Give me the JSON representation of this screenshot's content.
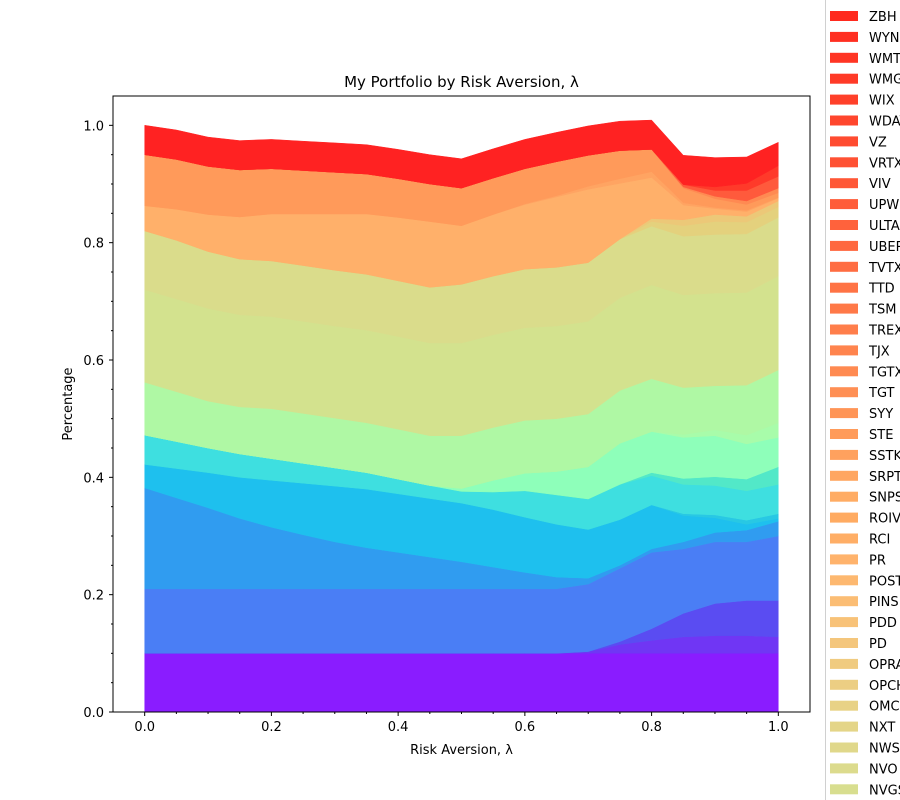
{
  "chart_data": {
    "type": "area",
    "stacked": true,
    "title": "My Portfolio by Risk Aversion, λ",
    "xlabel": "Risk Aversion, λ",
    "ylabel": "Percentage",
    "xlim": [
      -0.05,
      1.05
    ],
    "ylim": [
      0.0,
      1.05
    ],
    "xticks": [
      "0.0",
      "0.2",
      "0.4",
      "0.6",
      "0.8",
      "1.0"
    ],
    "yticks": [
      "0.0",
      "0.2",
      "0.4",
      "0.6",
      "0.8",
      "1.0"
    ],
    "grid": false,
    "legend_position": "right (outside, clipped)",
    "legend": [
      "ZBH",
      "WYNN",
      "WMT",
      "WMG",
      "WIX",
      "WDAY",
      "VZ",
      "VRTX",
      "VIV",
      "UPWK",
      "ULTA",
      "UBER",
      "TVTX",
      "TTD",
      "TSM",
      "TREX",
      "TJX",
      "TGTX",
      "TGT",
      "SYY",
      "STE",
      "SSTK",
      "SRPT",
      "SNPS",
      "ROIV",
      "RCI",
      "PR",
      "POST",
      "PINS",
      "PDD",
      "PD",
      "OPRA",
      "OPCH",
      "OMC",
      "NXT",
      "NWS",
      "NVO",
      "NVGS"
    ],
    "legend_colors": [
      "#ff2a1e",
      "#ff2f21",
      "#ff3524",
      "#ff3a27",
      "#ff402a",
      "#ff462d",
      "#ff4b30",
      "#ff5133",
      "#ff5736",
      "#ff5c39",
      "#ff623c",
      "#ff683f",
      "#ff6d42",
      "#ff7345",
      "#ff7948",
      "#ff7e4b",
      "#ff844e",
      "#ff8a51",
      "#ff8f54",
      "#ff9557",
      "#ff9b5a",
      "#ffa15e",
      "#ffa661",
      "#ffac64",
      "#ffab62",
      "#ffae66",
      "#ffb36c",
      "#fdb870",
      "#fbbd74",
      "#f8c278",
      "#f4c67c",
      "#f0cb80",
      "#ecce83",
      "#e8d286",
      "#e4d588",
      "#e0d88b",
      "#dcdb8d",
      "#d8de8f"
    ],
    "x": [
      0.0,
      0.05,
      0.1,
      0.15,
      0.2,
      0.25,
      0.3,
      0.35,
      0.4,
      0.45,
      0.5,
      0.55,
      0.6,
      0.65,
      0.7,
      0.75,
      0.8,
      0.85,
      0.9,
      0.95,
      1.0
    ],
    "series": [
      {
        "color": "#8a1cff",
        "values": [
          0.1,
          0.1,
          0.1,
          0.1,
          0.1,
          0.1,
          0.1,
          0.1,
          0.1,
          0.1,
          0.1,
          0.1,
          0.1,
          0.1,
          0.1,
          0.1,
          0.1,
          0.1,
          0.1,
          0.1,
          0.1
        ]
      },
      {
        "color": "#7036f4",
        "values": [
          0,
          0,
          0,
          0,
          0,
          0,
          0,
          0,
          0,
          0,
          0,
          0,
          0,
          0,
          0.003,
          0.015,
          0.022,
          0.028,
          0.03,
          0.03,
          0.028
        ]
      },
      {
        "color": "#5a4cf2",
        "values": [
          0,
          0,
          0,
          0,
          0,
          0,
          0,
          0,
          0,
          0,
          0,
          0,
          0,
          0,
          0,
          0.005,
          0.02,
          0.04,
          0.055,
          0.06,
          0.062
        ]
      },
      {
        "color": "#4a7ef5",
        "values": [
          0.11,
          0.11,
          0.11,
          0.11,
          0.11,
          0.11,
          0.11,
          0.11,
          0.11,
          0.11,
          0.11,
          0.11,
          0.11,
          0.11,
          0.115,
          0.125,
          0.13,
          0.11,
          0.105,
          0.1,
          0.11
        ]
      },
      {
        "color": "#309cf0",
        "values": [
          0.172,
          0.155,
          0.138,
          0.12,
          0.105,
          0.092,
          0.08,
          0.07,
          0.062,
          0.054,
          0.046,
          0.037,
          0.028,
          0.02,
          0.01,
          0.005,
          0.006,
          0.012,
          0.016,
          0.02,
          0.025
        ]
      },
      {
        "color": "#1ec0ee",
        "values": [
          0.04,
          0.05,
          0.06,
          0.07,
          0.08,
          0.088,
          0.095,
          0.1,
          0.1,
          0.1,
          0.1,
          0.098,
          0.094,
          0.09,
          0.083,
          0.078,
          0.075,
          0.045,
          0.025,
          0.01,
          0.005
        ]
      },
      {
        "color": "#28c8e4",
        "values": [
          0,
          0,
          0,
          0,
          0,
          0,
          0,
          0,
          0,
          0,
          0,
          0,
          0,
          0,
          0,
          0,
          0,
          0.003,
          0.005,
          0.007,
          0.008
        ]
      },
      {
        "color": "#3edfe0",
        "values": [
          0.05,
          0.046,
          0.042,
          0.04,
          0.037,
          0.034,
          0.031,
          0.028,
          0.025,
          0.022,
          0.02,
          0.03,
          0.045,
          0.05,
          0.052,
          0.06,
          0.05,
          0.05,
          0.05,
          0.05,
          0.05
        ]
      },
      {
        "color": "#52e8c8",
        "values": [
          0,
          0,
          0,
          0,
          0,
          0,
          0,
          0,
          0,
          0,
          0,
          0,
          0,
          0,
          0,
          0,
          0.005,
          0.01,
          0.015,
          0.02,
          0.03
        ]
      },
      {
        "color": "#8effba",
        "values": [
          0,
          0,
          0,
          0,
          0,
          0,
          0,
          0,
          0,
          0,
          0.005,
          0.02,
          0.03,
          0.04,
          0.055,
          0.07,
          0.07,
          0.07,
          0.07,
          0.06,
          0.05
        ]
      },
      {
        "color": "#a8fcaa",
        "values": [
          0,
          0,
          0,
          0,
          0,
          0,
          0,
          0,
          0,
          0,
          0,
          0,
          0,
          0,
          0,
          0,
          0,
          0.005,
          0.01,
          0.015,
          0.025
        ]
      },
      {
        "color": "#aff8a4",
        "values": [
          0.09,
          0.085,
          0.08,
          0.08,
          0.085,
          0.085,
          0.085,
          0.085,
          0.085,
          0.085,
          0.09,
          0.09,
          0.09,
          0.09,
          0.09,
          0.09,
          0.09,
          0.08,
          0.075,
          0.085,
          0.09
        ]
      },
      {
        "color": "#d3e28e",
        "values": [
          0.158,
          0.158,
          0.158,
          0.157,
          0.157,
          0.157,
          0.157,
          0.158,
          0.158,
          0.158,
          0.158,
          0.158,
          0.158,
          0.158,
          0.158,
          0.158,
          0.16,
          0.158,
          0.158,
          0.158,
          0.16
        ]
      },
      {
        "color": "#dadc8b",
        "values": [
          0.1,
          0.1,
          0.097,
          0.095,
          0.095,
          0.095,
          0.095,
          0.095,
          0.095,
          0.095,
          0.1,
          0.1,
          0.1,
          0.1,
          0.1,
          0.1,
          0.1,
          0.1,
          0.1,
          0.1,
          0.1
        ]
      },
      {
        "color": "#e4d17d",
        "values": [
          0,
          0,
          0,
          0,
          0,
          0,
          0,
          0,
          0,
          0,
          0,
          0,
          0,
          0,
          0,
          0,
          0.008,
          0.018,
          0.022,
          0.02,
          0.018
        ]
      },
      {
        "color": "#ecc878",
        "values": [
          0,
          0,
          0,
          0,
          0,
          0,
          0,
          0,
          0,
          0,
          0,
          0,
          0,
          0,
          0,
          0,
          0.005,
          0.01,
          0.012,
          0.01,
          0.01
        ]
      },
      {
        "color": "#ffb06a",
        "values": [
          0.043,
          0.053,
          0.063,
          0.072,
          0.08,
          0.088,
          0.096,
          0.103,
          0.108,
          0.112,
          0.1,
          0.105,
          0.11,
          0.12,
          0.125,
          0.095,
          0.07,
          0.025,
          0.01,
          0.008,
          0.005
        ]
      },
      {
        "color": "#ffa462",
        "values": [
          0,
          0,
          0,
          0,
          0,
          0,
          0,
          0,
          0,
          0,
          0,
          0,
          0.001,
          0.002,
          0.005,
          0.008,
          0.01,
          0.004,
          0.002,
          0.002,
          0.001
        ]
      },
      {
        "color": "#ff9a5a",
        "values": [
          0.087,
          0.085,
          0.082,
          0.08,
          0.077,
          0.074,
          0.071,
          0.068,
          0.066,
          0.064,
          0.064,
          0.062,
          0.06,
          0.058,
          0.053,
          0.048,
          0.038,
          0.025,
          0.015,
          0.01,
          0.008
        ]
      },
      {
        "color": "#ff8a52",
        "values": [
          0,
          0,
          0,
          0,
          0,
          0,
          0,
          0,
          0,
          0,
          0,
          0,
          0,
          0,
          0,
          0,
          0,
          0.002,
          0.004,
          0.006,
          0.008
        ]
      },
      {
        "color": "#ff5a3c",
        "values": [
          0,
          0,
          0,
          0,
          0,
          0,
          0,
          0,
          0,
          0,
          0,
          0,
          0,
          0,
          0,
          0,
          0,
          0.004,
          0.01,
          0.018,
          0.02
        ]
      },
      {
        "color": "#ff3a2a",
        "values": [
          0,
          0,
          0,
          0,
          0,
          0,
          0,
          0,
          0,
          0,
          0,
          0,
          0,
          0,
          0,
          0,
          0,
          0,
          0.006,
          0.012,
          0.018
        ]
      },
      {
        "color": "#ff2222",
        "values": [
          0.05,
          0.05,
          0.05,
          0.05,
          0.05,
          0.05,
          0.05,
          0.05,
          0.05,
          0.05,
          0.05,
          0.05,
          0.05,
          0.05,
          0.05,
          0.05,
          0.05,
          0.05,
          0.05,
          0.045,
          0.04
        ]
      }
    ]
  }
}
